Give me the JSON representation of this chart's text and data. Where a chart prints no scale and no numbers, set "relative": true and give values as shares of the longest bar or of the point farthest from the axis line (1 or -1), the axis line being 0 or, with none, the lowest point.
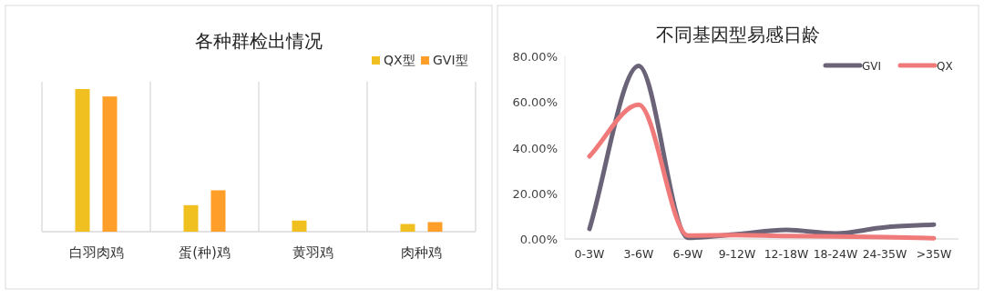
{
  "chart_data": [
    {
      "type": "bar",
      "title": "各种群检出情况",
      "relative": true,
      "categories": [
        "白羽肉鸡",
        "蛋(种)鸡",
        "黄羽鸡",
        "肉种鸡"
      ],
      "legend": "top right",
      "grid": "x",
      "series": [
        {
          "name": "QX型",
          "color": "#f0c020",
          "values": [
            1,
            0.186,
            0.078,
            0.054
          ]
        },
        {
          "name": "GVI型",
          "color": "#ff9f2a",
          "values": [
            0.948,
            0.29,
            0,
            0.067
          ]
        }
      ]
    },
    {
      "type": "line",
      "title": "不同基因型易感日龄",
      "categories": [
        "0-3W",
        "3-6W",
        "6-9W",
        "9-12W",
        "12-18W",
        "18-24W",
        "24-35W",
        ">35W"
      ],
      "legend": "top right",
      "ylim": [
        0,
        80
      ],
      "yticks": [
        {
          "value": 0,
          "label": "0.00%"
        },
        {
          "value": 20,
          "label": "20.00%"
        },
        {
          "value": 40,
          "label": "40.00%"
        },
        {
          "value": 60,
          "label": "60.00%"
        },
        {
          "value": 80,
          "label": "80.00%"
        }
      ],
      "series": [
        {
          "name": "GVI",
          "color": "#6b6478",
          "values": [
            4.4,
            75.8,
            0.5,
            2.1,
            4,
            2.4,
            5.1,
            6.3
          ]
        },
        {
          "name": "QX",
          "color": "#f07a7a",
          "values": [
            36.2,
            58.8,
            1.5,
            1.7,
            1.3,
            1.1,
            0.8,
            0.3
          ]
        }
      ]
    }
  ]
}
